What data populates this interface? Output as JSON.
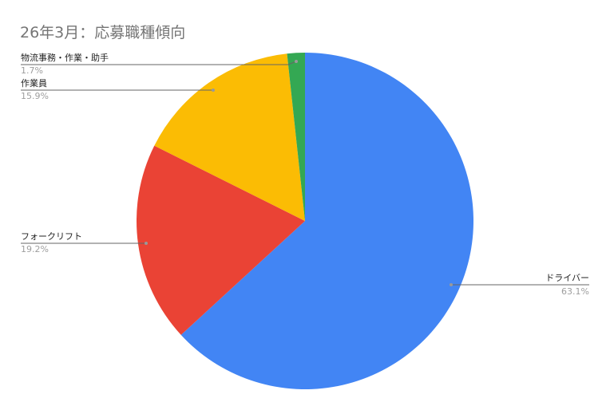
{
  "chart_data": {
    "type": "pie",
    "title": "26年3月：応募職種傾向",
    "start": "top",
    "direction": "clockwise",
    "slices": [
      {
        "label": "ドライバー",
        "value": 63.1,
        "pct_label": "63.1%",
        "color": "#4285F4"
      },
      {
        "label": "フォークリフト",
        "value": 19.2,
        "pct_label": "19.2%",
        "color": "#EA4335"
      },
      {
        "label": "作業員",
        "value": 15.9,
        "pct_label": "15.9%",
        "color": "#FBBC04"
      },
      {
        "label": "物流事務・作業・助手",
        "value": 1.7,
        "pct_label": "1.7%",
        "color": "#34A853"
      }
    ],
    "legend": "labels-with-leader-lines"
  }
}
